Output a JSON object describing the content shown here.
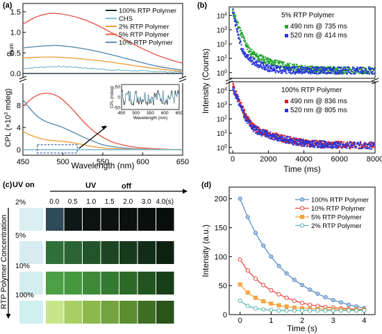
{
  "panel_labels": {
    "a": "(a)",
    "b": "(b)",
    "c": "(c)",
    "d": "(d)"
  },
  "colors": {
    "p100": "#1a2b30",
    "chs": "#7ab8cf",
    "p2": "#f0a040",
    "p5": "#e8594a",
    "p10": "#5a8fb0",
    "green": "#1ea32a",
    "blue": "#2a35d9",
    "red": "#d92020",
    "d100": "#5a8ec2",
    "d10": "#e8453c",
    "d5": "#f5a540",
    "d2": "#5ab6b0"
  },
  "chart_data": [
    {
      "id": "a-top",
      "type": "line",
      "ylabel": "g_lum",
      "ylabel_main": "g",
      "ylabel_sub": "lum",
      "ylim": [
        -0.1,
        1.7
      ],
      "yticks": [
        "0.0",
        "0.5",
        "1.0",
        "1.5"
      ],
      "xlim": [
        450,
        650
      ],
      "legend": [
        "100% RTP Polymer",
        "CHS",
        "2% RTP Polymer",
        "5% RTP Polymer",
        "10% RTP Polymer"
      ],
      "series": [
        {
          "name": "100% RTP Polymer",
          "color": "p100",
          "x": [
            450,
            500,
            550,
            600,
            650
          ],
          "y": [
            0.0,
            0.0,
            0.0,
            0.0,
            0.0
          ]
        },
        {
          "name": "CHS",
          "color": "chs",
          "x": [
            450,
            470,
            490,
            510,
            530,
            550,
            570,
            600,
            630,
            650
          ],
          "y": [
            0.12,
            0.15,
            0.17,
            0.16,
            0.13,
            0.1,
            0.08,
            0.06,
            0.04,
            0.03
          ]
        },
        {
          "name": "2% RTP Polymer",
          "color": "p2",
          "x": [
            450,
            480,
            500,
            520,
            550,
            580,
            600,
            630,
            650
          ],
          "y": [
            0.38,
            0.4,
            0.39,
            0.36,
            0.3,
            0.22,
            0.16,
            0.09,
            0.05
          ]
        },
        {
          "name": "5% RTP Polymer",
          "color": "p5",
          "x": [
            450,
            465,
            480,
            490,
            500,
            520,
            540,
            560,
            580,
            600,
            620,
            640,
            650
          ],
          "y": [
            1.2,
            1.36,
            1.45,
            1.46,
            1.44,
            1.35,
            1.2,
            1.0,
            0.8,
            0.6,
            0.43,
            0.3,
            0.25
          ]
        },
        {
          "name": "10% RTP Polymer",
          "color": "p10",
          "x": [
            450,
            470,
            490,
            500,
            520,
            540,
            560,
            580,
            600,
            620,
            650
          ],
          "y": [
            0.62,
            0.66,
            0.68,
            0.67,
            0.62,
            0.55,
            0.46,
            0.36,
            0.26,
            0.17,
            0.08
          ]
        }
      ]
    },
    {
      "id": "a-bottom",
      "type": "line",
      "ylabel": "CPL (×10³ mdeg)",
      "ylabel_prefix": "CPL (×10",
      "ylabel_sup": "3",
      "ylabel_suffix": " mdeg)",
      "ylim": [
        -1,
        12
      ],
      "yticks": [
        "0",
        "4",
        "8"
      ],
      "xlabel": "Wavelength (nm)",
      "xlim": [
        450,
        650
      ],
      "xticks": [
        "450",
        "500",
        "550",
        "600",
        "650"
      ],
      "series": [
        {
          "name": "5% RTP Polymer",
          "color": "p5",
          "x": [
            450,
            465,
            480,
            495,
            510,
            525,
            540,
            560,
            580,
            600,
            625,
            650
          ],
          "y": [
            7.8,
            9.6,
            10.2,
            9.5,
            7.6,
            5.2,
            3.2,
            1.5,
            0.7,
            0.3,
            0.1,
            0.0
          ]
        },
        {
          "name": "10% RTP Polymer",
          "color": "p10",
          "x": [
            450,
            460,
            470,
            480,
            490,
            500,
            515,
            530,
            550,
            570,
            600,
            650
          ],
          "y": [
            9.0,
            7.2,
            5.8,
            5.0,
            4.5,
            4.0,
            3.0,
            2.0,
            0.9,
            0.4,
            0.1,
            0.0
          ]
        },
        {
          "name": "2% RTP Polymer",
          "color": "p2",
          "x": [
            450,
            460,
            475,
            490,
            500,
            510,
            525,
            540,
            560,
            600,
            650
          ],
          "y": [
            3.3,
            2.6,
            1.9,
            1.6,
            1.5,
            1.3,
            0.9,
            0.5,
            0.2,
            0.05,
            0.0
          ]
        },
        {
          "name": "CHS",
          "color": "chs",
          "x": [
            450,
            500,
            550,
            600,
            650
          ],
          "y": [
            0.0,
            0.0,
            0.0,
            0.0,
            0.0
          ]
        }
      ],
      "inset": {
        "ylabel": "CPL (mdeg)",
        "xlabel": "Wavelength (nm)",
        "xlim": [
          450,
          650
        ],
        "xticks": [
          "450",
          "500",
          "550",
          "600",
          "650"
        ],
        "ylim": [
          -60,
          60
        ],
        "yticks": [
          "50",
          "0",
          "-50"
        ]
      }
    },
    {
      "id": "b",
      "type": "scatter",
      "ylabel": "Intensity (Counts)",
      "xlabel": "Time (ms)",
      "xlim": [
        0,
        8000
      ],
      "xticks": [
        "0",
        "2000",
        "4000",
        "6000",
        "8000"
      ],
      "ylog": true,
      "yticks_exp": [
        "0",
        "1",
        "2",
        "3",
        "4"
      ],
      "top": {
        "title": "5% RTP Polymer",
        "legend": [
          "490 nm @ 735 ms",
          "520 nm @ 414 ms"
        ],
        "series": [
          {
            "name": "490 nm @ 735 ms",
            "color": "green",
            "tau": 735,
            "y0": 20000
          },
          {
            "name": "520 nm @ 414 ms",
            "color": "blue",
            "tau": 414,
            "y0": 25000
          }
        ]
      },
      "bottom": {
        "title": "100% RTP Polymer",
        "legend": [
          "490 nm @ 836 ms",
          "520 nm @ 805 ms"
        ],
        "series": [
          {
            "name": "490 nm @ 836 ms",
            "color": "red",
            "tau": 836,
            "y0": 20000
          },
          {
            "name": "520 nm @ 805 ms",
            "color": "blue",
            "tau": 805,
            "y0": 15000
          }
        ]
      }
    },
    {
      "id": "c",
      "type": "table",
      "uv_on": "UV on",
      "uv_off_prefix": "UV",
      "uv_off_suffix": "off",
      "ylabel": "RTP Polymer Concentration",
      "time_labels": [
        "0.0",
        "0.5",
        "1.0",
        "1.5",
        "2.0",
        "3.0",
        "4.0(s)"
      ],
      "rows": [
        {
          "label": "2%",
          "on": "#dbeef2",
          "tiles": [
            "#2f4a58",
            "#0e1816",
            "#0c1412",
            "#0b1210",
            "#0a110f",
            "#090f0d",
            "#080e0c"
          ]
        },
        {
          "label": "5%",
          "on": "#d6ecf0",
          "tiles": [
            "#2f6f3a",
            "#2b6434",
            "#23532b",
            "#1d4524",
            "#173a1e",
            "#122d17",
            "#0d2111"
          ]
        },
        {
          "label": "10%",
          "on": "#d4eef0",
          "tiles": [
            "#4aa043",
            "#45983e",
            "#3e8a38",
            "#357a31",
            "#2c6a2a",
            "#225420",
            "#183f18"
          ]
        },
        {
          "label": "100%",
          "on": "#cfeff0",
          "tiles": [
            "#c9e58a",
            "#a8cf62",
            "#8cb94c",
            "#73a33e",
            "#5a8e31",
            "#3f6f24",
            "#2a5219"
          ]
        }
      ]
    },
    {
      "id": "d",
      "type": "line",
      "ylabel": "Intensity (a.u.)",
      "xlabel": "Time (s)",
      "xlim": [
        -0.35,
        4.35
      ],
      "xticks": [
        "0",
        "1",
        "2",
        "3",
        "4"
      ],
      "ylim": [
        0,
        220
      ],
      "yticks": [
        "0",
        "50",
        "100",
        "150",
        "200"
      ],
      "legend": [
        "100% RTP Polymer",
        "10% RTP Polymer",
        "5% RTP Polymer",
        "2% RTP Polymer"
      ],
      "series": [
        {
          "name": "100% RTP Polymer",
          "color": "d100",
          "marker": "circle",
          "x": [
            0,
            0.25,
            0.5,
            0.75,
            1.0,
            1.25,
            1.5,
            1.75,
            2.0,
            2.25,
            2.5,
            2.75,
            3.0,
            3.25,
            3.5,
            3.75,
            4.0
          ],
          "y": [
            200,
            168,
            141,
            119,
            100,
            84,
            71,
            60,
            51,
            43,
            36,
            30,
            25,
            21,
            17,
            14,
            11
          ]
        },
        {
          "name": "10% RTP Polymer",
          "color": "d10",
          "marker": "circle-open",
          "x": [
            0,
            0.25,
            0.5,
            0.75,
            1.0,
            1.25,
            1.5,
            1.75,
            2.0,
            2.25,
            2.5,
            2.75,
            3.0,
            3.25,
            3.5,
            3.75,
            4.0
          ],
          "y": [
            95,
            76,
            62,
            51,
            42,
            35,
            29,
            24,
            20,
            17,
            15,
            13,
            12,
            11,
            10,
            9,
            9
          ]
        },
        {
          "name": "5% RTP Polymer",
          "color": "d5",
          "marker": "square",
          "x": [
            0,
            0.25,
            0.5,
            0.75,
            1.0,
            1.25,
            1.5,
            1.75,
            2.0,
            2.25,
            2.5,
            2.75,
            3.0,
            3.25,
            3.5,
            3.75,
            4.0
          ],
          "y": [
            52,
            38,
            29,
            23,
            19,
            16,
            14,
            12,
            11,
            10,
            10,
            9,
            9,
            9,
            8,
            8,
            8
          ]
        },
        {
          "name": "2% RTP Polymer",
          "color": "d2",
          "marker": "circle-open",
          "x": [
            0,
            0.25,
            0.5,
            0.75,
            1.0,
            1.25,
            1.5,
            1.75,
            2.0,
            2.25,
            2.5,
            2.75,
            3.0,
            3.25,
            3.5,
            3.75,
            4.0
          ],
          "y": [
            24,
            15,
            11,
            9,
            8,
            7,
            7,
            7,
            7,
            7,
            7,
            7,
            7,
            7,
            7,
            7,
            7
          ]
        }
      ]
    }
  ]
}
